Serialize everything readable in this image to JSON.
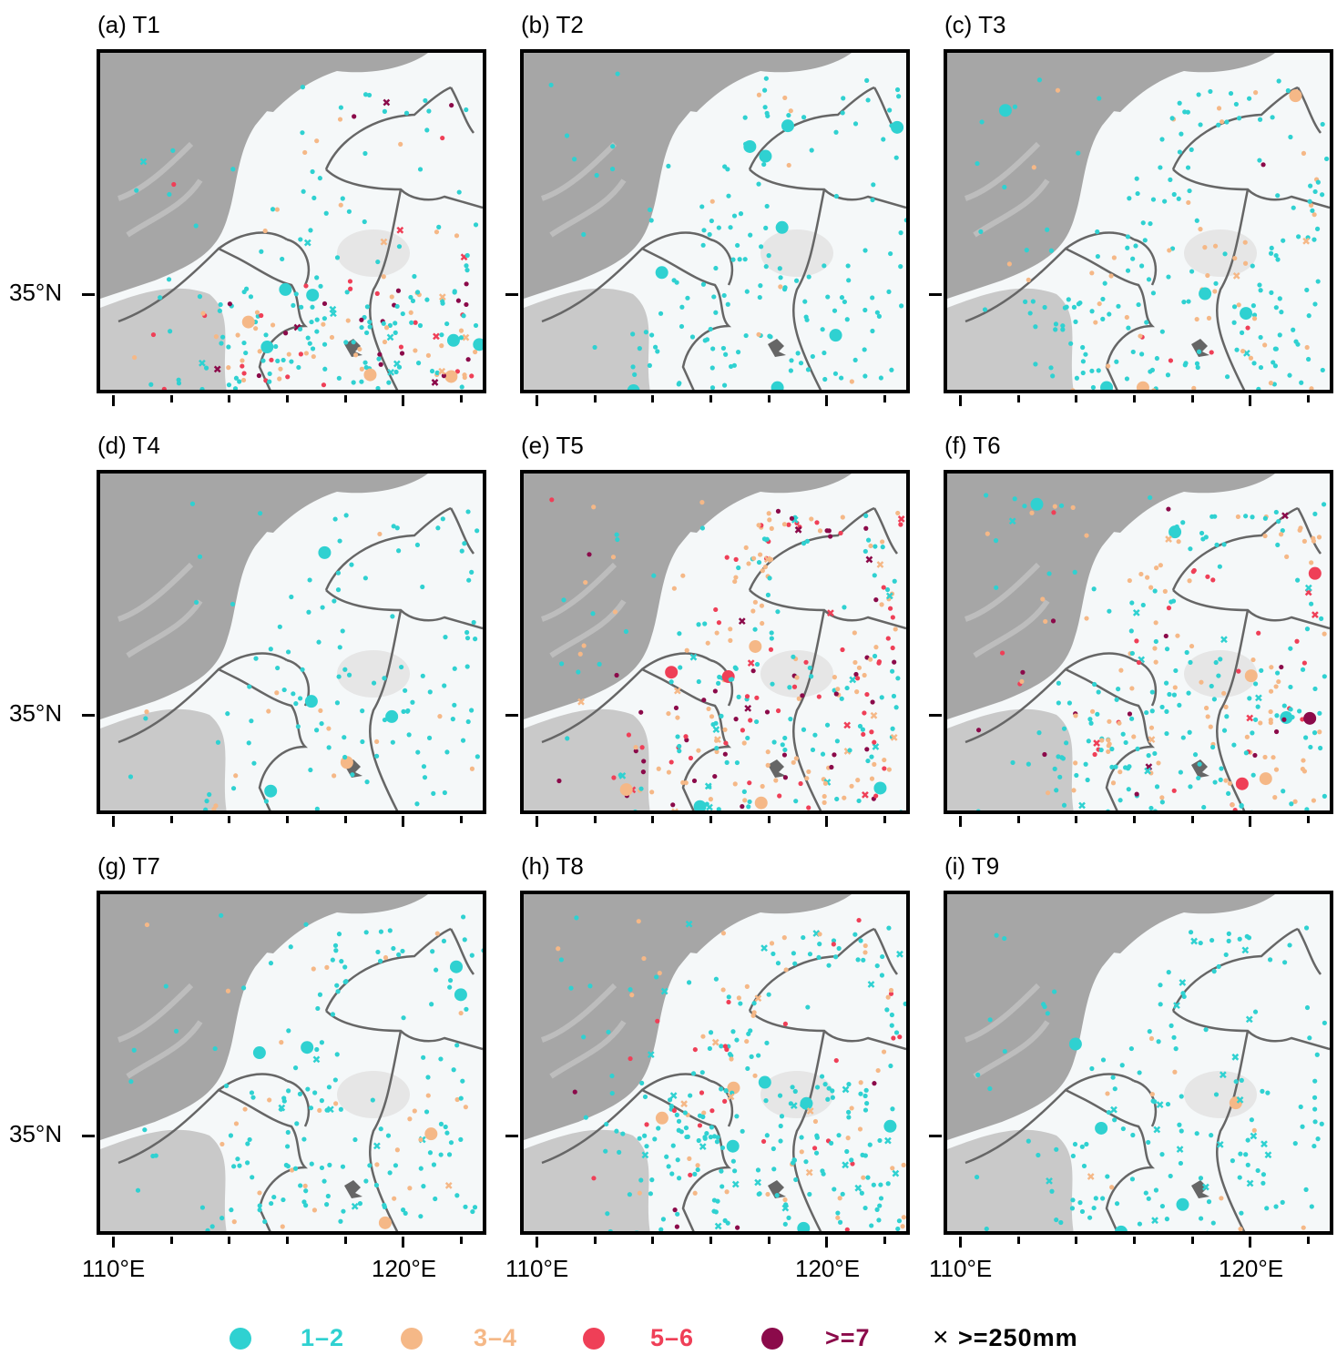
{
  "figure": {
    "y_axis_label": "35°N",
    "x_axis_labels": [
      "110°E",
      "120°E"
    ],
    "basemap_colors": {
      "mountain": "#a6a6a6",
      "hill": "#c9c9c9",
      "plain": "#f5f8f9",
      "boundary": "#666666"
    }
  },
  "panels": [
    {
      "id": "a",
      "label": "(a) T1"
    },
    {
      "id": "b",
      "label": "(b) T2"
    },
    {
      "id": "c",
      "label": "(c) T3"
    },
    {
      "id": "d",
      "label": "(d) T4"
    },
    {
      "id": "e",
      "label": "(e) T5"
    },
    {
      "id": "f",
      "label": "(f) T6"
    },
    {
      "id": "g",
      "label": "(g) T7"
    },
    {
      "id": "h",
      "label": "(h) T8"
    },
    {
      "id": "i",
      "label": "(i) T9"
    }
  ],
  "legend": {
    "items": [
      {
        "label": "1–2",
        "color": "#2fd1d1",
        "icon": "circle-marker"
      },
      {
        "label": "3–4",
        "color": "#f5b887",
        "icon": "circle-marker"
      },
      {
        "label": "5–6",
        "color": "#ef3f57",
        "icon": "circle-marker"
      },
      {
        "label": ">=7",
        "color": "#8b0a4a",
        "icon": "circle-marker"
      }
    ],
    "cross_label": ">=250mm",
    "cross_icon": "cross-marker"
  }
}
